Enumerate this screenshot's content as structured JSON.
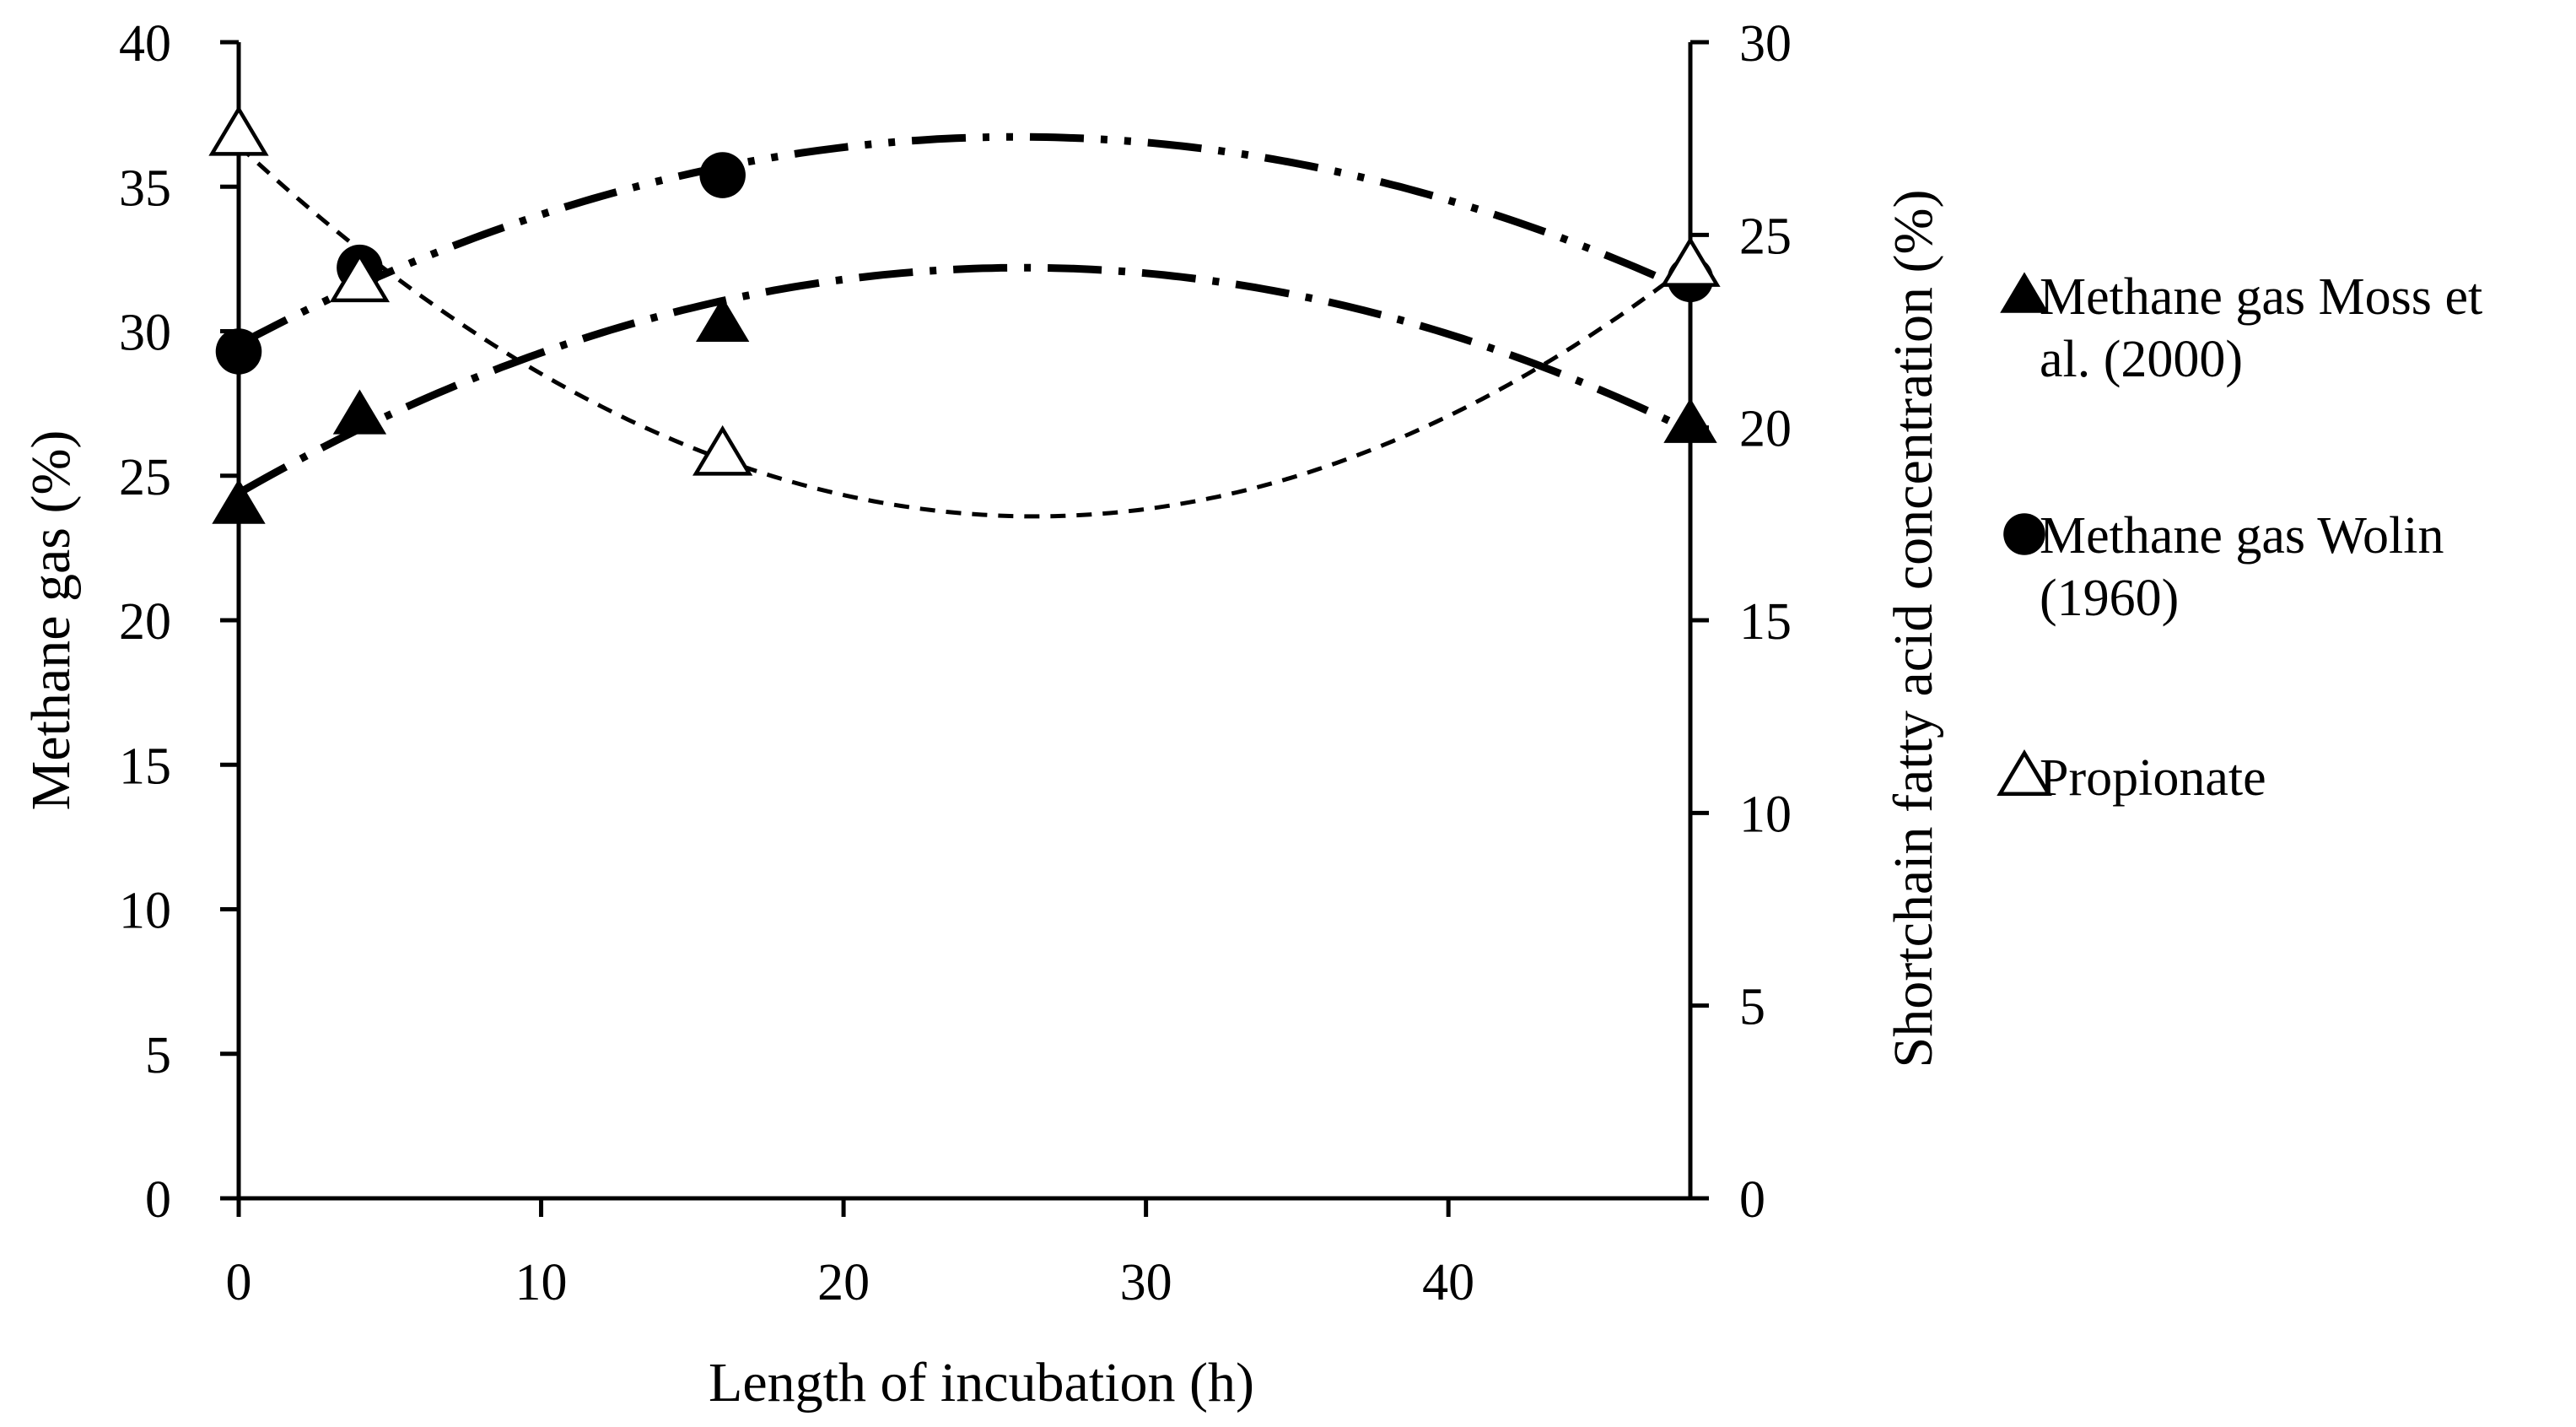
{
  "chart_data": {
    "type": "scatter",
    "title": "",
    "xlabel": "Length of incubation (h)",
    "ylabel_left": "Methane gas (%)",
    "ylabel_right": "Shortchain fatty acid concentration (%)",
    "xlim": [
      0,
      48
    ],
    "ylim_left": [
      0,
      40
    ],
    "ylim_right": [
      0,
      30
    ],
    "x_ticks": [
      "0",
      "10",
      "20",
      "30",
      "40"
    ],
    "x_tick_values": [
      0,
      10,
      20,
      30,
      40
    ],
    "y_left_ticks": [
      "0",
      "5",
      "10",
      "15",
      "20",
      "25",
      "30",
      "35",
      "40"
    ],
    "y_left_tick_values": [
      0,
      5,
      10,
      15,
      20,
      25,
      30,
      35,
      40
    ],
    "y_right_ticks": [
      "0",
      "5",
      "10",
      "15",
      "20",
      "25",
      "30"
    ],
    "y_right_tick_values": [
      0,
      5,
      10,
      15,
      20,
      25,
      30
    ],
    "grid": false,
    "legend_position": "right",
    "series": [
      {
        "name": "Methane gas Moss et al. (2000)",
        "legend_lines": [
          "Methane gas Moss et",
          "al. (2000)"
        ],
        "axis": "left",
        "marker": "filled-triangle",
        "trendline": "long-dash-dot",
        "color": "#000000",
        "x": [
          0,
          4,
          16,
          48
        ],
        "y": [
          24.0,
          27.1,
          30.3,
          26.8
        ],
        "trend_coeffs": [
          24.4,
          0.6015,
          -0.0116
        ]
      },
      {
        "name": "Methane gas Wolin (1960)",
        "legend_lines": [
          "Methane gas Wolin",
          "(1960)"
        ],
        "axis": "left",
        "marker": "filled-circle",
        "trendline": "long-dash-dot-dot",
        "color": "#000000",
        "x": [
          0,
          4,
          16,
          48
        ],
        "y": [
          29.3,
          32.2,
          35.4,
          31.8
        ],
        "trend_coeffs": [
          29.54,
          0.5576,
          -0.01082
        ]
      },
      {
        "name": "Propionate",
        "legend_lines": [
          "Propionate"
        ],
        "axis": "right",
        "marker": "open-triangle",
        "trendline": "short-dash",
        "color": "#000000",
        "x": [
          0,
          4,
          16,
          48
        ],
        "y": [
          27.6,
          23.8,
          19.3,
          24.2
        ],
        "trend_coeffs": [
          27.32,
          -0.7315,
          0.0139
        ]
      }
    ]
  }
}
